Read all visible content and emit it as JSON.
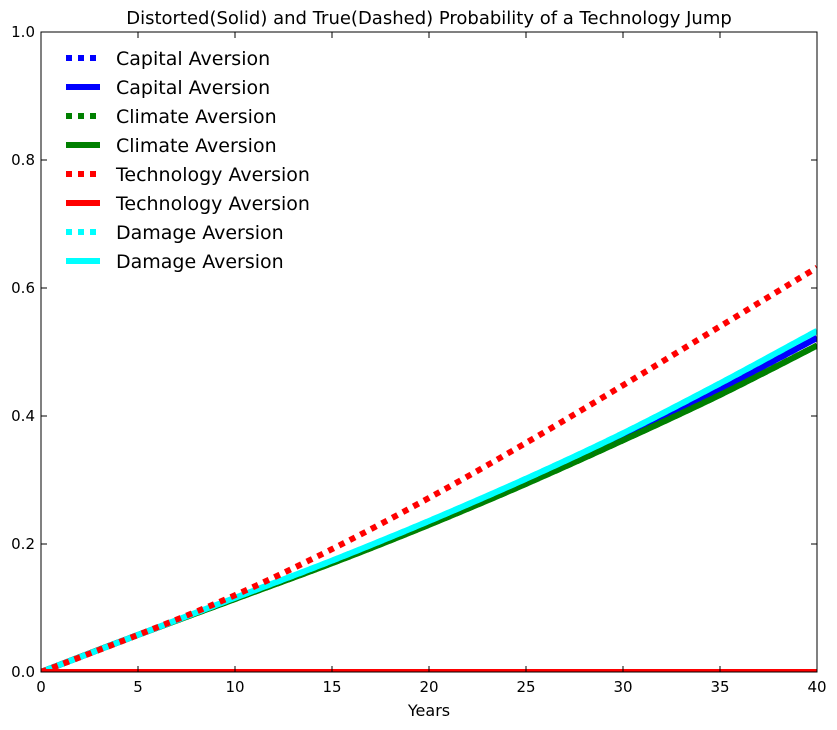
{
  "chart_data": {
    "type": "line",
    "title": "Distorted(Solid) and True(Dashed) Probability of a Technology Jump",
    "xlabel": "Years",
    "ylabel": "",
    "xlim": [
      0,
      40
    ],
    "ylim": [
      0,
      1.0
    ],
    "x_ticks": [
      0,
      5,
      10,
      15,
      20,
      25,
      30,
      35,
      40
    ],
    "x_tick_labels": [
      "0",
      "5",
      "10",
      "15",
      "20",
      "25",
      "30",
      "35",
      "40"
    ],
    "y_ticks": [
      0,
      0.2,
      0.4,
      0.6,
      0.8,
      1.0
    ],
    "y_tick_labels": [
      "0.0",
      "0.2",
      "0.4",
      "0.6",
      "0.8",
      "1.0"
    ],
    "grid": false,
    "legend_position": "top-left",
    "x": [
      0,
      5,
      10,
      15,
      20,
      25,
      30,
      35,
      40
    ],
    "series": [
      {
        "name": "Capital Aversion",
        "style": "dotted",
        "color": "#0000ff",
        "values": [
          0,
          0.058,
          0.115,
          0.172,
          0.232,
          0.296,
          0.366,
          0.442,
          0.522
        ]
      },
      {
        "name": "Capital Aversion",
        "style": "solid",
        "color": "#0000ff",
        "values": [
          0,
          0.058,
          0.115,
          0.172,
          0.232,
          0.296,
          0.366,
          0.442,
          0.522
        ]
      },
      {
        "name": "Climate Aversion",
        "style": "dotted",
        "color": "#008000",
        "values": [
          0,
          0.058,
          0.114,
          0.17,
          0.23,
          0.294,
          0.362,
          0.433,
          0.51
        ]
      },
      {
        "name": "Climate Aversion",
        "style": "solid",
        "color": "#008000",
        "values": [
          0,
          0.058,
          0.114,
          0.17,
          0.23,
          0.294,
          0.362,
          0.433,
          0.51
        ]
      },
      {
        "name": "Technology Aversion",
        "style": "dotted",
        "color": "#ff0000",
        "values": [
          0,
          0.058,
          0.12,
          0.192,
          0.272,
          0.358,
          0.448,
          0.54,
          0.632
        ]
      },
      {
        "name": "Technology Aversion",
        "style": "solid",
        "color": "#ff0000",
        "values": [
          0,
          0,
          0,
          0,
          0,
          0,
          0,
          0,
          0
        ]
      },
      {
        "name": "Damage Aversion",
        "style": "dotted",
        "color": "#00ffff",
        "values": [
          0,
          0.058,
          0.116,
          0.174,
          0.236,
          0.302,
          0.373,
          0.451,
          0.533
        ]
      },
      {
        "name": "Damage Aversion",
        "style": "solid",
        "color": "#00ffff",
        "values": [
          0,
          0.058,
          0.116,
          0.174,
          0.236,
          0.302,
          0.373,
          0.451,
          0.533
        ]
      }
    ]
  }
}
